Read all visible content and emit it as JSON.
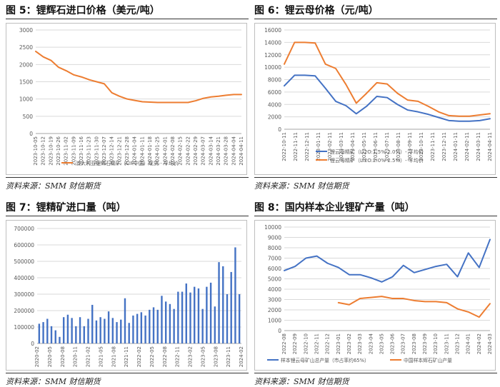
{
  "colors": {
    "orange": "#ED7D31",
    "blue": "#4472C4",
    "grid": "#D9D9D9",
    "axis": "#595959",
    "frame": "#BFBFBF"
  },
  "panels": {
    "p5": {
      "title": "图 5：锂辉石进口价格（美元/吨）",
      "source": "资料来源：SMM 财信期货"
    },
    "p6": {
      "title": "图 6：锂云母价格（元/吨）",
      "source": "资料来源：SMM 财信期货"
    },
    "p7": {
      "title": "图 7：锂精矿进口量（吨）",
      "source": "资料来源：SMM 财信期货"
    },
    "p8": {
      "title": "图 8：国内样本企业锂矿产量（吨）",
      "source": "资料来源：SMM 财信期货"
    }
  },
  "chart_data": [
    {
      "id": "p5",
      "type": "line",
      "title": "",
      "ylim": [
        0,
        3000
      ],
      "yticks": [
        0,
        500,
        1000,
        1500,
        2000,
        2500,
        3000
      ],
      "x_ticks": [
        "2023-10-05",
        "2023-10-12",
        "2023-10-19",
        "2023-10-26",
        "2023-11-02",
        "2023-11-09",
        "2023-11-16",
        "2023-11-23",
        "2023-11-30",
        "2023-12-07",
        "2023-12-14",
        "2023-12-21",
        "2023-12-28",
        "2024-01-04",
        "2024-01-11",
        "2024-01-18",
        "2024-01-25",
        "2024-02-01",
        "2024-02-08",
        "2024-02-15",
        "2024-02-22",
        "2024-02-29",
        "2024-03-07",
        "2024-03-14",
        "2024-03-21",
        "2024-03-28",
        "2024-04-04",
        "2024-04-11"
      ],
      "series": [
        {
          "name": "澳大利亚锂辉石精矿（CIF中国）现货 - 平均价",
          "color": "#ED7D31",
          "values": [
            2380,
            2220,
            2120,
            1920,
            1820,
            1700,
            1640,
            1560,
            1500,
            1440,
            1180,
            1080,
            1000,
            960,
            920,
            910,
            900,
            900,
            900,
            900,
            900,
            950,
            1020,
            1060,
            1080,
            1110,
            1130,
            1130
          ]
        }
      ]
    },
    {
      "id": "p6",
      "type": "line",
      "ylim": [
        0,
        16000
      ],
      "yticks": [
        0,
        2000,
        4000,
        6000,
        8000,
        10000,
        12000,
        14000,
        16000
      ],
      "x_ticks": [
        "2022-10-11",
        "2022-11-11",
        "2022-12-11",
        "2023-01-11",
        "2023-02-11",
        "2023-03-11",
        "2023-04-11",
        "2023-05-11",
        "2023-06-11",
        "2023-07-11",
        "2023-08-11",
        "2023-09-11",
        "2023-10-11",
        "2023-11-11",
        "2023-12-11",
        "2024-01-11",
        "2024-02-11",
        "2024-03-11",
        "2024-04-11"
      ],
      "series": [
        {
          "name": "锂云母精矿（Li2O:1.5%-2.0%）- 平均价",
          "color": "#4472C4",
          "values": [
            7000,
            8700,
            8700,
            8600,
            6600,
            4500,
            3800,
            2500,
            3700,
            5300,
            5100,
            4000,
            3100,
            2800,
            2400,
            1900,
            1400,
            1300,
            1300,
            1400,
            1700
          ]
        },
        {
          "name": "锂云母精矿（Li2O:2.0%-2.5%）- 平均价",
          "color": "#ED7D31",
          "values": [
            10500,
            14000,
            14000,
            13900,
            10500,
            9800,
            7200,
            4200,
            5800,
            7500,
            7300,
            5800,
            4700,
            4500,
            3700,
            2800,
            2200,
            2100,
            2100,
            2300,
            2500
          ]
        }
      ]
    },
    {
      "id": "p7",
      "type": "bar",
      "ylim": [
        0,
        700000
      ],
      "yticks": [
        0,
        100000,
        200000,
        300000,
        400000,
        500000,
        600000,
        700000
      ],
      "x_ticks": [
        "2020-02",
        "2020-05",
        "2020-08",
        "2020-11",
        "2021-02",
        "2021-05",
        "2021-08",
        "2021-11",
        "2022-02",
        "2022-05",
        "2022-08",
        "2022-11",
        "2023-02",
        "2023-05",
        "2023-08",
        "2023-11",
        "2024-02"
      ],
      "series": [
        {
          "name": "锂精矿进口量",
          "color": "#4472C4",
          "values": [
            120000,
            130000,
            150000,
            105000,
            80000,
            40000,
            160000,
            175000,
            155000,
            105000,
            160000,
            105000,
            150000,
            235000,
            140000,
            160000,
            150000,
            195000,
            155000,
            130000,
            145000,
            275000,
            125000,
            170000,
            180000,
            190000,
            170000,
            205000,
            220000,
            205000,
            290000,
            255000,
            240000,
            210000,
            315000,
            315000,
            365000,
            310000,
            345000,
            335000,
            210000,
            345000,
            370000,
            225000,
            495000,
            470000,
            300000,
            435000,
            585000,
            300000
          ]
        }
      ]
    },
    {
      "id": "p8",
      "type": "line",
      "ylim": [
        0,
        10000
      ],
      "yticks": [
        0,
        1000,
        2000,
        3000,
        4000,
        5000,
        6000,
        7000,
        8000,
        9000,
        10000
      ],
      "x_ticks": [
        "2022-08",
        "2022-09",
        "2022-10",
        "2022-11",
        "2022-12",
        "2023-01",
        "2023-02",
        "2023-03",
        "2023-04",
        "2023-05",
        "2023-06",
        "2023-07",
        "2023-08",
        "2023-09",
        "2023-10",
        "2023-11",
        "2023-12",
        "2024-01",
        "2024-02",
        "2024-03"
      ],
      "series": [
        {
          "name": "样本锂云母矿山总产量（市占率约65%）",
          "color": "#4472C4",
          "values": [
            5800,
            6200,
            7000,
            7200,
            6500,
            6100,
            5400,
            5400,
            5100,
            4700,
            5200,
            6300,
            5600,
            5900,
            6200,
            6400,
            5200,
            7500,
            6100,
            8800
          ]
        },
        {
          "name": "中国样本辉石矿山产量",
          "color": "#ED7D31",
          "values": [
            null,
            null,
            null,
            null,
            null,
            2700,
            2500,
            3100,
            3200,
            3300,
            3100,
            3100,
            2900,
            2800,
            2800,
            2700,
            2100,
            1800,
            1300,
            2600
          ]
        }
      ]
    }
  ]
}
